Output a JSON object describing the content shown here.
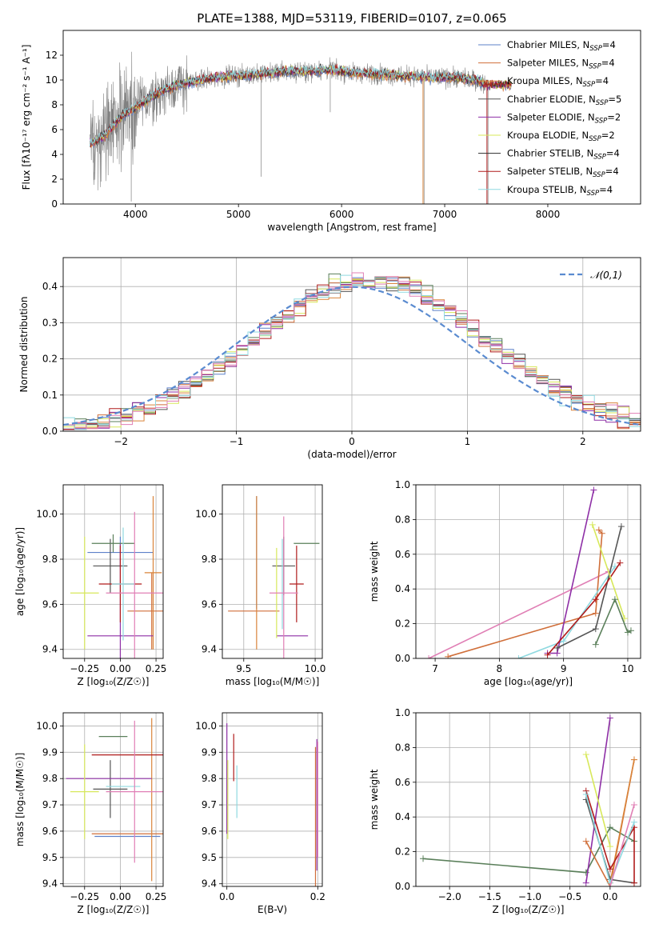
{
  "chart_data": [
    {
      "type": "line",
      "panel": "spectrum",
      "title": "PLATE=1388, MJD=53119, FIBERID=0107, z=0.065",
      "xlabel": "wavelength [Angstrom, rest frame]",
      "ylabel": "Flux [fλ10⁻¹⁷ erg cm⁻² s⁻¹ A⁻¹]",
      "xlim": [
        3300,
        8900
      ],
      "ylim": [
        0,
        14
      ],
      "xticks": [
        4000,
        5000,
        6000,
        7000,
        8000
      ],
      "yticks": [
        0,
        2,
        4,
        6,
        8,
        10,
        12
      ],
      "grid": false,
      "legend_position": "top-right",
      "observed": {
        "color": "#808080",
        "x": [
          3560,
          3700,
          3800,
          3900,
          4000,
          4150,
          4300,
          4500,
          4700,
          4900,
          5100,
          5300,
          5500,
          5700,
          5900,
          6100,
          6300,
          6500,
          6700,
          6900,
          7100,
          7300,
          7420
        ],
        "y": [
          4.8,
          5.5,
          6.5,
          7.3,
          7.8,
          8.6,
          9.3,
          9.8,
          10.1,
          10.3,
          10.4,
          10.6,
          10.7,
          10.7,
          10.8,
          10.6,
          10.5,
          10.4,
          10.3,
          10.2,
          10.2,
          10.0,
          9.6
        ]
      },
      "series": [
        {
          "name": "Chabrier MILES, N_SSP=4",
          "color": "#5e81c9"
        },
        {
          "name": "Salpeter MILES, N_SSP=4",
          "color": "#d06f3a"
        },
        {
          "name": "Kroupa MILES, N_SSP=4",
          "color": "#d9843a"
        },
        {
          "name": "Chabrier ELODIE, N_SSP=5",
          "color": "#555555"
        },
        {
          "name": "Salpeter ELODIE, N_SSP=2",
          "color": "#8e2fa6"
        },
        {
          "name": "Kroupa ELODIE, N_SSP=2",
          "color": "#d7e85a"
        },
        {
          "name": "Chabrier STELIB, N_SSP=4",
          "color": "#2d2d2d"
        },
        {
          "name": "Salpeter STELIB, N_SSP=4",
          "color": "#b01c1c"
        },
        {
          "name": "Kroupa STELIB, N_SSP=4",
          "color": "#8fd9e0"
        }
      ],
      "legend_labels": [
        "Chabrier MILES, N",
        "Salpeter MILES, N",
        "Kroupa MILES, N",
        "Chabrier ELODIE, N",
        "Salpeter ELODIE, N",
        "Kroupa ELODIE, N",
        "Chabrier STELIB, N",
        "Salpeter STELIB, N",
        "Kroupa STELIB, N"
      ],
      "legend_counts": [
        "=4",
        "=4",
        "=4",
        "=5",
        "=2",
        "=2",
        "=4",
        "=4",
        "=4"
      ],
      "legend_subscript": "SSP"
    },
    {
      "type": "histogram",
      "panel": "residuals",
      "xlabel": "(data-model)/error",
      "ylabel": "Normed distribution",
      "xlim": [
        -2.5,
        2.5
      ],
      "ylim": [
        0,
        0.48
      ],
      "xticks": [
        -2,
        -1,
        0,
        1,
        2
      ],
      "yticks": [
        0.0,
        0.1,
        0.2,
        0.3,
        0.4
      ],
      "grid": true,
      "legend_position": "top-right",
      "reference_curve": {
        "name": "𝒩(0,1)",
        "color": "#5a8bd0",
        "style": "dashed"
      },
      "bin_width": 0.1
    },
    {
      "type": "scatter",
      "panel": "age-vs-Z",
      "xlabel": "Z [log₁₀(Z/Z☉)]",
      "ylabel": "age  [log₁₀(age/yr)]",
      "xlim": [
        -0.4,
        0.3
      ],
      "ylim": [
        9.36,
        10.13
      ],
      "xticks": [
        -0.25,
        0.0,
        0.25
      ],
      "yticks": [
        9.4,
        9.6,
        9.8,
        10.0
      ],
      "grid": true,
      "points": [
        {
          "x": 0.0,
          "y": 9.83,
          "xerr": 0.23,
          "yerr": 0.07,
          "color": "#5e81c9"
        },
        {
          "x": 0.22,
          "y": 9.57,
          "xerr": 0.17,
          "yerr": 0.17,
          "color": "#d06f3a"
        },
        {
          "x": 0.23,
          "y": 9.74,
          "xerr": 0.06,
          "yerr": 0.34,
          "color": "#d9843a"
        },
        {
          "x": -0.07,
          "y": 9.77,
          "xerr": 0.12,
          "yerr": 0.12,
          "color": "#555555"
        },
        {
          "x": 0.0,
          "y": 9.46,
          "xerr": 0.23,
          "yerr": 0.41,
          "color": "#8e2fa6"
        },
        {
          "x": -0.25,
          "y": 9.65,
          "xerr": 0.1,
          "yerr": 0.25,
          "color": "#d7e85a"
        },
        {
          "x": -0.05,
          "y": 9.87,
          "xerr": 0.15,
          "yerr": 0.04,
          "color": "#5a7f5a"
        },
        {
          "x": 0.0,
          "y": 9.69,
          "xerr": 0.15,
          "yerr": 0.17,
          "color": "#b01c1c"
        },
        {
          "x": 0.02,
          "y": 9.69,
          "xerr": 0.08,
          "yerr": 0.25,
          "color": "#8fd9e0"
        },
        {
          "x": 0.1,
          "y": 9.65,
          "xerr": 0.2,
          "yerr": 0.36,
          "color": "#e07fb5"
        }
      ]
    },
    {
      "type": "scatter",
      "panel": "age-vs-mass",
      "xlabel": "mass [log₁₀(M/M☉)]",
      "xlim": [
        9.35,
        10.05
      ],
      "ylim": [
        9.36,
        10.13
      ],
      "xticks": [
        9.5,
        10.0
      ],
      "yticks": [
        9.4,
        9.6,
        9.8,
        10.0
      ],
      "grid": true,
      "points": [
        {
          "x": 9.59,
          "y": 9.83,
          "xerr": 0.0,
          "yerr": 0.25,
          "color": "#5e81c9"
        },
        {
          "x": 9.57,
          "y": 9.57,
          "xerr": 0.18,
          "yerr": 0.0,
          "color": "#d06f3a"
        },
        {
          "x": 9.59,
          "y": 9.74,
          "xerr": 0.0,
          "yerr": 0.34,
          "color": "#d9843a"
        },
        {
          "x": 9.78,
          "y": 9.77,
          "xerr": 0.08,
          "yerr": 0.13,
          "color": "#555555"
        },
        {
          "x": 9.84,
          "y": 9.46,
          "xerr": 0.11,
          "yerr": 0.0,
          "color": "#8e2fa6"
        },
        {
          "x": 9.73,
          "y": 9.65,
          "xerr": 0.0,
          "yerr": 0.2,
          "color": "#d7e85a"
        },
        {
          "x": 9.94,
          "y": 9.87,
          "xerr": 0.09,
          "yerr": 0.0,
          "color": "#5a7f5a"
        },
        {
          "x": 9.87,
          "y": 9.69,
          "xerr": 0.05,
          "yerr": 0.17,
          "color": "#b01c1c"
        },
        {
          "x": 9.77,
          "y": 9.69,
          "xerr": 0.0,
          "yerr": 0.2,
          "color": "#8fd9e0"
        },
        {
          "x": 9.78,
          "y": 9.65,
          "xerr": 0.1,
          "yerr": 0.34,
          "color": "#e07fb5"
        }
      ]
    },
    {
      "type": "line",
      "panel": "weight-vs-age",
      "xlabel": "age  [log₁₀(age/yr)]",
      "ylabel": "mass weight",
      "xlim": [
        6.7,
        10.2
      ],
      "ylim": [
        0,
        1
      ],
      "xticks": [
        7,
        8,
        9,
        10
      ],
      "yticks": [
        0.0,
        0.2,
        0.4,
        0.6,
        0.8,
        1.0
      ],
      "grid": true,
      "series": [
        {
          "color": "#e07fb5",
          "x": [
            6.9,
            9.7
          ],
          "y": [
            0.0,
            0.5
          ]
        },
        {
          "color": "#d06f3a",
          "x": [
            7.2,
            9.5,
            9.6,
            9.55
          ],
          "y": [
            0.01,
            0.26,
            0.72,
            0.74
          ]
        },
        {
          "color": "#8fd9e0",
          "x": [
            8.3,
            9.0,
            9.8
          ],
          "y": [
            0.0,
            0.1,
            0.53
          ]
        },
        {
          "color": "#8e2fa6",
          "x": [
            8.75,
            8.9,
            9.47
          ],
          "y": [
            0.03,
            0.03,
            0.97
          ]
        },
        {
          "color": "#555555",
          "x": [
            8.9,
            9.5,
            9.9
          ],
          "y": [
            0.06,
            0.17,
            0.76
          ]
        },
        {
          "color": "#b01c1c",
          "x": [
            8.75,
            9.5,
            9.88
          ],
          "y": [
            0.02,
            0.34,
            0.55
          ]
        },
        {
          "color": "#d7e85a",
          "x": [
            9.45,
            9.95
          ],
          "y": [
            0.77,
            0.23
          ]
        },
        {
          "color": "#5a7f5a",
          "x": [
            9.5,
            9.8,
            10.0,
            10.05
          ],
          "y": [
            0.08,
            0.34,
            0.15,
            0.16
          ]
        }
      ]
    },
    {
      "type": "scatter",
      "panel": "mass-vs-Z",
      "xlabel": "Z [log₁₀(Z/Z☉)]",
      "ylabel": "mass [log₁₀(M/M☉)]",
      "xlim": [
        -0.4,
        0.3
      ],
      "ylim": [
        9.39,
        10.05
      ],
      "xticks": [
        -0.25,
        0.0,
        0.25
      ],
      "yticks": [
        9.4,
        9.5,
        9.6,
        9.7,
        9.8,
        9.9,
        10.0
      ],
      "grid": true,
      "points": [
        {
          "x": 0.05,
          "y": 9.58,
          "xerr": 0.23,
          "yerr": 0.0,
          "color": "#5e81c9"
        },
        {
          "x": 0.05,
          "y": 9.59,
          "xerr": 0.25,
          "yerr": 0.0,
          "color": "#d06f3a"
        },
        {
          "x": 0.22,
          "y": 9.72,
          "xerr": 0.0,
          "yerr": 0.31,
          "color": "#d9843a"
        },
        {
          "x": -0.07,
          "y": 9.76,
          "xerr": 0.12,
          "yerr": 0.11,
          "color": "#555555"
        },
        {
          "x": -0.08,
          "y": 9.8,
          "xerr": 0.3,
          "yerr": 0.0,
          "color": "#8e2fa6"
        },
        {
          "x": -0.25,
          "y": 9.75,
          "xerr": 0.1,
          "yerr": 0.18,
          "color": "#d7e85a"
        },
        {
          "x": -0.05,
          "y": 9.96,
          "xerr": 0.1,
          "yerr": 0.0,
          "color": "#5a7f5a"
        },
        {
          "x": 0.05,
          "y": 9.89,
          "xerr": 0.25,
          "yerr": 0.0,
          "color": "#b01c1c"
        },
        {
          "x": 0.02,
          "y": 9.77,
          "xerr": 0.12,
          "yerr": 0.0,
          "color": "#8fd9e0"
        },
        {
          "x": 0.1,
          "y": 9.75,
          "xerr": 0.2,
          "yerr": 0.27,
          "color": "#e07fb5"
        }
      ]
    },
    {
      "type": "scatter",
      "panel": "mass-vs-EBV",
      "xlabel": "E(B-V)",
      "xlim": [
        -0.01,
        0.21
      ],
      "ylim": [
        9.39,
        10.05
      ],
      "xticks": [
        0.0,
        0.2
      ],
      "yticks": [
        9.4,
        9.5,
        9.6,
        9.7,
        9.8,
        9.9,
        10.0
      ],
      "grid": true,
      "points": [
        {
          "x": 0.0,
          "y": 9.8,
          "xerr": 0.0,
          "yerr": 0.21,
          "color": "#8e2fa6"
        },
        {
          "x": 0.002,
          "y": 9.72,
          "xerr": 0.0,
          "yerr": 0.15,
          "color": "#d7e85a"
        },
        {
          "x": 0.015,
          "y": 9.88,
          "xerr": 0.0,
          "yerr": 0.09,
          "color": "#b01c1c"
        },
        {
          "x": 0.022,
          "y": 9.75,
          "xerr": 0.0,
          "yerr": 0.1,
          "color": "#8fd9e0"
        },
        {
          "x": 0.195,
          "y": 9.65,
          "xerr": 0.0,
          "yerr": 0.27,
          "color": "#d06f3a"
        },
        {
          "x": 0.198,
          "y": 9.7,
          "xerr": 0.0,
          "yerr": 0.25,
          "color": "#8e2fa6"
        },
        {
          "x": 0.2,
          "y": 9.72,
          "xerr": 0.0,
          "yerr": 0.22,
          "color": "#e07fb5"
        }
      ]
    },
    {
      "type": "line",
      "panel": "weight-vs-Z",
      "xlabel": "Z [log₁₀(Z/Z☉)]",
      "ylabel": "mass weight",
      "xlim": [
        -2.42,
        0.38
      ],
      "ylim": [
        0,
        1
      ],
      "xticks": [
        -2.0,
        -1.5,
        -1.0,
        -0.5,
        0.0
      ],
      "yticks": [
        0.0,
        0.2,
        0.4,
        0.6,
        0.8,
        1.0
      ],
      "grid": true,
      "series": [
        {
          "color": "#5a7f5a",
          "x": [
            -2.33,
            -0.3,
            0.0,
            0.3
          ],
          "y": [
            0.16,
            0.08,
            0.34,
            0.26
          ]
        },
        {
          "color": "#8e2fa6",
          "x": [
            -0.3,
            0.0
          ],
          "y": [
            0.02,
            0.97
          ]
        },
        {
          "color": "#d7e85a",
          "x": [
            -0.3,
            0.0
          ],
          "y": [
            0.76,
            0.23
          ]
        },
        {
          "color": "#d06f3a",
          "x": [
            -0.3,
            0.0,
            0.3
          ],
          "y": [
            0.26,
            0.0,
            0.73
          ]
        },
        {
          "color": "#d9843a",
          "x": [
            0.0,
            0.3
          ],
          "y": [
            0.02,
            0.73
          ]
        },
        {
          "color": "#555555",
          "x": [
            -0.3,
            0.0,
            0.3
          ],
          "y": [
            0.5,
            0.04,
            0.02
          ]
        },
        {
          "color": "#b01c1c",
          "x": [
            -0.3,
            0.0,
            0.3,
            0.3
          ],
          "y": [
            0.55,
            0.1,
            0.34,
            0.02
          ]
        },
        {
          "color": "#8fd9e0",
          "x": [
            -0.3,
            0.0,
            0.3
          ],
          "y": [
            0.53,
            0.02,
            0.37
          ]
        },
        {
          "color": "#e07fb5",
          "x": [
            0.0,
            0.3
          ],
          "y": [
            0.0,
            0.47
          ]
        }
      ]
    }
  ]
}
